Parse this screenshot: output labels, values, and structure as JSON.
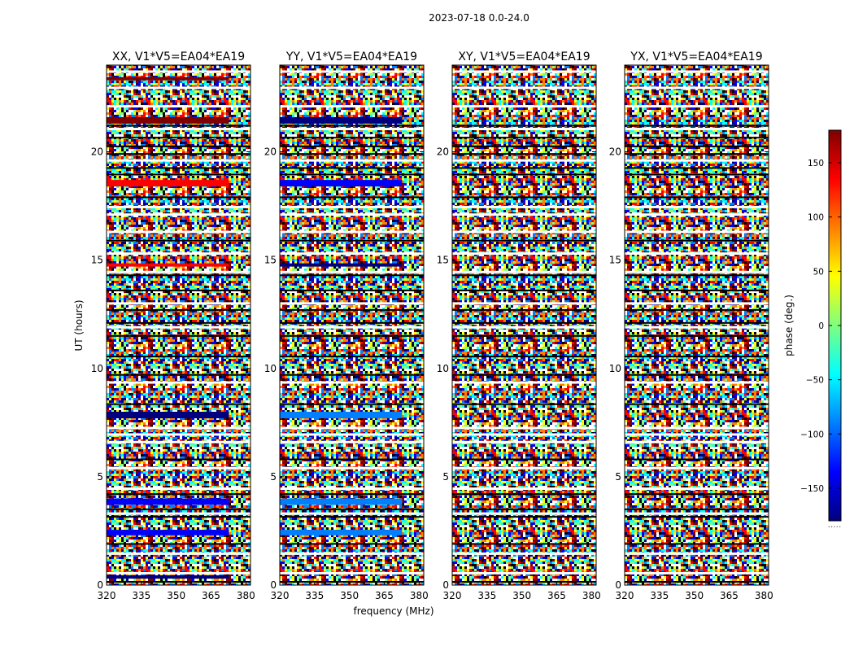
{
  "chart_data": {
    "type": "heatmap",
    "suptitle": "2023-07-18 0.0-24.0",
    "xlabel": "frequency (MHz)",
    "ylabel": "UT (hours)",
    "xlim": [
      320,
      382
    ],
    "ylim": [
      0,
      24
    ],
    "xticks": [
      320,
      335,
      350,
      365,
      380
    ],
    "yticks": [
      0,
      5,
      10,
      15,
      20
    ],
    "colormap": "jet",
    "colors": [
      "#00007f",
      "#0000ff",
      "#007fff",
      "#00ffff",
      "#7fff7f",
      "#ffff00",
      "#ff7f00",
      "#ff0000",
      "#7f0000"
    ],
    "panels": [
      {
        "title": "XX, V1*V5=EA04*EA19",
        "coherent_bands": [
          {
            "t0": 0.3,
            "t1": 0.45,
            "phase": -170
          },
          {
            "t0": 2.3,
            "t1": 2.55,
            "phase": -150
          },
          {
            "t0": 3.7,
            "t1": 4.0,
            "phase": -155
          },
          {
            "t0": 7.7,
            "t1": 8.0,
            "phase": -165
          },
          {
            "t0": 14.7,
            "t1": 14.85,
            "phase": 150
          },
          {
            "t0": 18.4,
            "t1": 18.7,
            "phase": 155
          },
          {
            "t0": 21.3,
            "t1": 21.6,
            "phase": 170
          },
          {
            "t0": 23.3,
            "t1": 23.45,
            "phase": 160
          }
        ]
      },
      {
        "title": "YY, V1*V5=EA04*EA19",
        "coherent_bands": [
          {
            "t0": 2.3,
            "t1": 2.55,
            "phase": -70
          },
          {
            "t0": 3.7,
            "t1": 4.0,
            "phase": -100
          },
          {
            "t0": 7.7,
            "t1": 8.0,
            "phase": -105
          },
          {
            "t0": 14.7,
            "t1": 14.85,
            "phase": -160
          },
          {
            "t0": 18.4,
            "t1": 18.7,
            "phase": -150
          },
          {
            "t0": 21.3,
            "t1": 21.6,
            "phase": -160
          }
        ]
      },
      {
        "title": "XY, V1*V5=EA04*EA19",
        "coherent_bands": []
      },
      {
        "title": "YX, V1*V5=EA04*EA19",
        "coherent_bands": []
      }
    ],
    "white_gaps_ut": [
      0.55,
      1.45,
      3.3,
      4.45,
      5.4,
      6.6,
      6.95,
      7.25,
      9.35,
      11.9,
      13.0,
      14.45,
      15.3,
      16.3,
      17.1,
      17.45,
      19.6,
      21.05,
      22.1,
      22.95,
      23.7
    ],
    "black_gaps_ut": [
      0.15,
      1.9,
      3.15,
      3.5,
      4.2,
      5.8,
      8.35,
      9.7,
      10.55,
      11.5,
      12.1,
      12.7,
      13.6,
      14.3,
      15.9,
      17.9,
      18.95,
      19.25,
      19.9,
      20.25,
      20.65,
      21.2
    ],
    "colorbar": {
      "label": "phase (deg.)",
      "range": [
        -180,
        180
      ],
      "ticks": [
        -150,
        -100,
        -50,
        0,
        50,
        100,
        150
      ],
      "tick_labels": [
        "−150",
        "−100",
        "−50",
        "0",
        "50",
        "100",
        "150"
      ],
      "footer": "....."
    }
  }
}
